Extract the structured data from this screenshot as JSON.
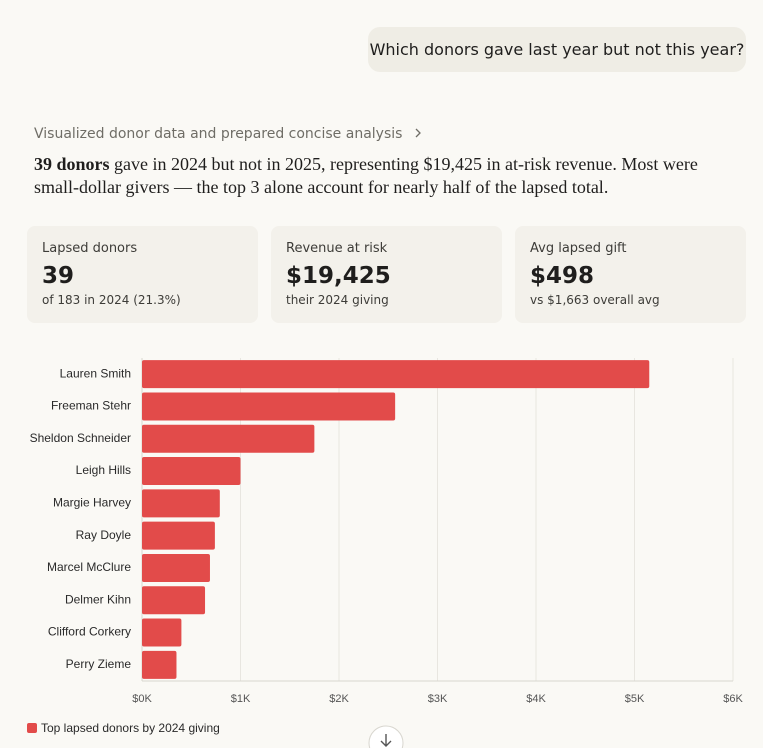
{
  "user_message": "Which donors gave last year but not this year?",
  "step": "Visualized donor data and prepared concise analysis",
  "summary": {
    "bold": "39 donors",
    "text": "gave in 2024 but not in 2025, representing $19,425 in at-risk revenue. Most were small-dollar givers — the top 3 alone account for nearly half of the lapsed total."
  },
  "cards": [
    {
      "label": "Lapsed donors",
      "value": "39",
      "note": "of 183 in 2024 (21.3%)"
    },
    {
      "label": "Revenue at risk",
      "value": "$19,425",
      "note": "their 2024 giving"
    },
    {
      "label": "Avg lapsed gift",
      "value": "$498",
      "note": "vs $1,663 overall avg"
    }
  ],
  "chart_data": {
    "type": "hbar",
    "categories": [
      "Lauren Smith",
      "Freeman Stehr",
      "Sheldon Schneider",
      "Leigh Hills",
      "Margie Harvey",
      "Ray Doyle",
      "Marcel McClure",
      "Delmer Kihn",
      "Clifford Corkery",
      "Perry Zieme"
    ],
    "series": [
      {
        "name": "Top lapsed donors by 2024 giving",
        "color": "#e24b4a",
        "values": [
          5150,
          2570,
          1750,
          1000,
          790,
          740,
          690,
          640,
          400,
          350
        ]
      }
    ],
    "xlim": [
      0,
      6000
    ],
    "xticks": [
      {
        "value": 0,
        "label": "$0K"
      },
      {
        "value": 1000,
        "label": "$1K"
      },
      {
        "value": 2000,
        "label": "$2K"
      },
      {
        "value": 3000,
        "label": "$3K"
      },
      {
        "value": 4000,
        "label": "$4K"
      },
      {
        "value": 5000,
        "label": "$5K"
      },
      {
        "value": 6000,
        "label": "$6K"
      }
    ],
    "grid": true
  }
}
